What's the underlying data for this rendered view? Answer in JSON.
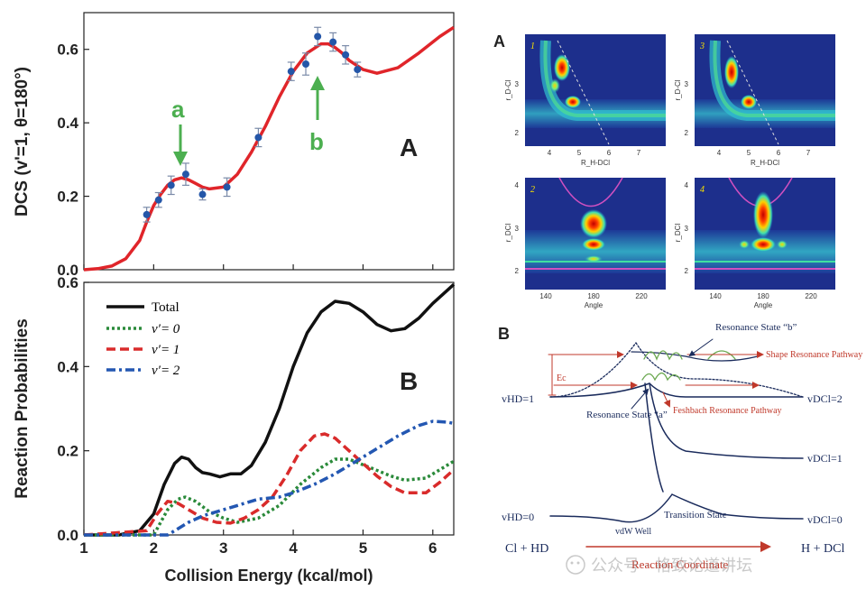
{
  "left_figure": {
    "panel_A_label": "A",
    "panel_B_label": "B",
    "xlabel": "Collision Energy (kcal/mol)",
    "arrow_a": "a",
    "arrow_b": "b"
  },
  "chart_data": [
    {
      "type": "scatter",
      "title": "",
      "panel": "A",
      "ylabel": "DCS (v'=1, θ=180°)",
      "xlabel": "Collision Energy (kcal/mol)",
      "xlim": [
        1,
        6.3
      ],
      "ylim": [
        0,
        0.7
      ],
      "yticks": [
        "0.0",
        "0.2",
        "0.4",
        "0.6"
      ],
      "xticks": [
        "1",
        "2",
        "3",
        "4",
        "5",
        "6"
      ],
      "points": [
        {
          "x": 1.9,
          "y": 0.15,
          "err": 0.02
        },
        {
          "x": 2.07,
          "y": 0.19,
          "err": 0.02
        },
        {
          "x": 2.25,
          "y": 0.23,
          "err": 0.025
        },
        {
          "x": 2.46,
          "y": 0.26,
          "err": 0.03
        },
        {
          "x": 2.7,
          "y": 0.205,
          "err": 0.015
        },
        {
          "x": 3.05,
          "y": 0.225,
          "err": 0.025
        },
        {
          "x": 3.5,
          "y": 0.36,
          "err": 0.025
        },
        {
          "x": 3.97,
          "y": 0.54,
          "err": 0.025
        },
        {
          "x": 4.18,
          "y": 0.56,
          "err": 0.03
        },
        {
          "x": 4.35,
          "y": 0.635,
          "err": 0.025
        },
        {
          "x": 4.57,
          "y": 0.62,
          "err": 0.025
        },
        {
          "x": 4.75,
          "y": 0.585,
          "err": 0.025
        },
        {
          "x": 4.92,
          "y": 0.545,
          "err": 0.02
        }
      ],
      "theory_curve": {
        "x": [
          1.0,
          1.2,
          1.4,
          1.6,
          1.8,
          1.9,
          2.0,
          2.1,
          2.2,
          2.3,
          2.4,
          2.5,
          2.6,
          2.7,
          2.8,
          3.0,
          3.2,
          3.4,
          3.6,
          3.8,
          4.0,
          4.2,
          4.4,
          4.5,
          4.6,
          4.7,
          4.8,
          5.0,
          5.2,
          5.5,
          5.8,
          6.1,
          6.3
        ],
        "y": [
          0.0,
          0.003,
          0.01,
          0.03,
          0.08,
          0.13,
          0.175,
          0.205,
          0.23,
          0.245,
          0.25,
          0.245,
          0.235,
          0.225,
          0.22,
          0.225,
          0.26,
          0.32,
          0.39,
          0.47,
          0.54,
          0.59,
          0.615,
          0.615,
          0.605,
          0.59,
          0.57,
          0.545,
          0.535,
          0.55,
          0.59,
          0.635,
          0.66
        ]
      }
    },
    {
      "type": "line",
      "title": "",
      "panel": "B",
      "ylabel": "Reaction Probabilities",
      "xlabel": "Collision Energy (kcal/mol)",
      "xlim": [
        1,
        6.3
      ],
      "ylim": [
        0,
        0.6
      ],
      "yticks": [
        "0.0",
        "0.2",
        "0.4",
        "0.6"
      ],
      "xticks": [
        "1",
        "2",
        "3",
        "4",
        "5",
        "6"
      ],
      "series": [
        {
          "name": "Total",
          "color": "#111111",
          "x": [
            1.0,
            1.5,
            1.8,
            2.0,
            2.15,
            2.3,
            2.4,
            2.5,
            2.6,
            2.7,
            2.8,
            2.95,
            3.1,
            3.25,
            3.4,
            3.6,
            3.8,
            4.0,
            4.2,
            4.4,
            4.6,
            4.8,
            5.0,
            5.2,
            5.4,
            5.6,
            5.8,
            6.0,
            6.2,
            6.3
          ],
          "y": [
            0.0,
            0.0,
            0.01,
            0.05,
            0.12,
            0.17,
            0.185,
            0.18,
            0.16,
            0.148,
            0.145,
            0.138,
            0.145,
            0.145,
            0.165,
            0.22,
            0.3,
            0.4,
            0.48,
            0.53,
            0.555,
            0.55,
            0.53,
            0.5,
            0.485,
            0.49,
            0.515,
            0.55,
            0.58,
            0.595
          ]
        },
        {
          "name": "v′= 0",
          "color": "#2a8a3a",
          "x": [
            1.0,
            2.0,
            2.2,
            2.35,
            2.45,
            2.6,
            2.8,
            3.0,
            3.2,
            3.5,
            3.8,
            4.1,
            4.4,
            4.6,
            4.8,
            5.1,
            5.4,
            5.6,
            5.9,
            6.1,
            6.3
          ],
          "y": [
            0.0,
            0.0,
            0.06,
            0.085,
            0.09,
            0.08,
            0.055,
            0.04,
            0.03,
            0.04,
            0.07,
            0.12,
            0.16,
            0.18,
            0.18,
            0.16,
            0.14,
            0.13,
            0.135,
            0.155,
            0.175
          ]
        },
        {
          "name": "v′= 1",
          "color": "#d92b2b",
          "x": [
            1.0,
            1.9,
            2.05,
            2.2,
            2.35,
            2.5,
            2.7,
            2.9,
            3.1,
            3.3,
            3.5,
            3.7,
            3.9,
            4.1,
            4.3,
            4.45,
            4.6,
            4.8,
            5.0,
            5.2,
            5.4,
            5.6,
            5.9,
            6.1,
            6.3
          ],
          "y": [
            0.0,
            0.01,
            0.05,
            0.08,
            0.075,
            0.06,
            0.04,
            0.03,
            0.028,
            0.04,
            0.06,
            0.09,
            0.14,
            0.2,
            0.235,
            0.24,
            0.23,
            0.2,
            0.17,
            0.14,
            0.115,
            0.1,
            0.1,
            0.125,
            0.155
          ]
        },
        {
          "name": "v′= 2",
          "color": "#2357b2",
          "x": [
            1.0,
            2.2,
            2.3,
            2.5,
            2.7,
            2.9,
            3.1,
            3.3,
            3.5,
            3.8,
            4.0,
            4.3,
            4.6,
            4.9,
            5.2,
            5.5,
            5.8,
            6.0,
            6.2,
            6.3
          ],
          "y": [
            0.0,
            0.0,
            0.01,
            0.03,
            0.045,
            0.055,
            0.065,
            0.075,
            0.085,
            0.09,
            0.1,
            0.12,
            0.145,
            0.175,
            0.205,
            0.235,
            0.26,
            0.27,
            0.268,
            0.265
          ]
        }
      ]
    }
  ],
  "right_figure": {
    "panel_A_label": "A",
    "panel_B_label": "B",
    "heatmaps": [
      {
        "label": "1",
        "ylabel": "r_D-Cl",
        "xlabel": "R_H-DCl",
        "yticks": [
          "2",
          "3"
        ],
        "xticks": [
          "4",
          "5",
          "6",
          "7"
        ]
      },
      {
        "label": "3",
        "ylabel": "r_D-Cl",
        "xlabel": "R_H-DCl",
        "yticks": [
          "2",
          "3"
        ],
        "xticks": [
          "4",
          "5",
          "6",
          "7"
        ]
      },
      {
        "label": "2",
        "ylabel": "r_DCl",
        "xlabel": "Angle",
        "yticks": [
          "2",
          "3",
          "4"
        ],
        "xticks": [
          "140",
          "180",
          "220"
        ]
      },
      {
        "label": "4",
        "ylabel": "r_DCl",
        "xlabel": "Angle",
        "yticks": [
          "2",
          "3",
          "4"
        ],
        "xticks": [
          "140",
          "180",
          "220"
        ]
      }
    ],
    "diagram": {
      "res_b": "Resonance State “b”",
      "res_a": "Resonance State “a”",
      "shape_res": "Shape Resonance Pathway",
      "feshbach": "Feshbach Resonance Pathway",
      "ec": "Ec",
      "vhd1": "vHD=1",
      "vhd0": "vHD=0",
      "vdcl2": "vDCl=2",
      "vdcl1": "vDCl=1",
      "vdcl0": "vDCl=0",
      "vdw": "vdW Well",
      "ts": "Transition State",
      "reactants": "Cl + HD",
      "products": "H + DCl",
      "reaction_coord": "Reaction Coordinate",
      "watermark": "公众号 · 格致论道讲坛"
    }
  }
}
